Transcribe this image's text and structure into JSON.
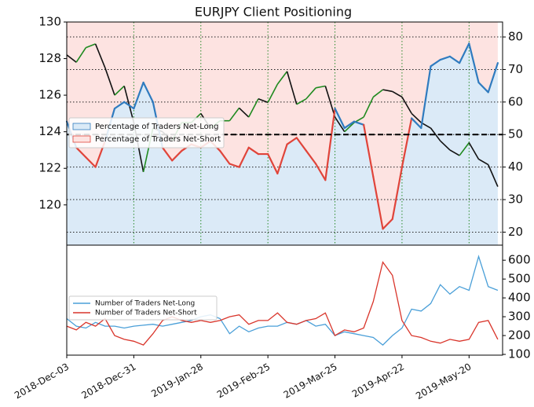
{
  "chart_data": [
    {
      "type": "line",
      "title": "EURJPY Client Positioning",
      "x": [
        "2018-12-03",
        "2018-12-07",
        "2018-12-11",
        "2018-12-15",
        "2018-12-19",
        "2018-12-23",
        "2018-12-27",
        "2018-12-31",
        "2019-01-04",
        "2019-01-08",
        "2019-01-12",
        "2019-01-16",
        "2019-01-20",
        "2019-01-24",
        "2019-01-28",
        "2019-02-01",
        "2019-02-05",
        "2019-02-09",
        "2019-02-13",
        "2019-02-17",
        "2019-02-21",
        "2019-02-25",
        "2019-03-01",
        "2019-03-05",
        "2019-03-09",
        "2019-03-13",
        "2019-03-17",
        "2019-03-21",
        "2019-03-25",
        "2019-03-29",
        "2019-04-02",
        "2019-04-06",
        "2019-04-10",
        "2019-04-14",
        "2019-04-18",
        "2019-04-22",
        "2019-04-26",
        "2019-04-30",
        "2019-05-04",
        "2019-05-08",
        "2019-05-12",
        "2019-05-16",
        "2019-05-20",
        "2019-05-24",
        "2019-05-28",
        "2019-06-01"
      ],
      "xlim": [
        "2018-12-03",
        "2019-06-03"
      ],
      "xticks": [
        "2018-12-03",
        "2018-12-31",
        "2019-01-28",
        "2019-02-25",
        "2019-03-25",
        "2019-04-22",
        "2019-05-20"
      ],
      "ylim": [
        117.8,
        130
      ],
      "yticks": [
        120,
        122,
        124,
        126,
        128,
        130
      ],
      "ytick_color": "#1f7a1f",
      "y2lim": [
        16,
        84.6
      ],
      "y2ticks": [
        20,
        30,
        40,
        50,
        60,
        70,
        80
      ],
      "grid": true,
      "reference": {
        "value": 50,
        "axis": "y2"
      },
      "legend_position": "center left",
      "legend": [
        {
          "label": "Percentage of Traders Net-Long",
          "color": "#2f7bbf",
          "fill": "#dbeaf7"
        },
        {
          "label": "Percentage of Traders Net-Short",
          "color": "#e0443a",
          "fill": "#fde3e1"
        }
      ],
      "series": [
        {
          "color": "#111111",
          "up_color": "#1f8a1f",
          "values": [
            128.2,
            127.8,
            128.6,
            128.8,
            127.5,
            126.0,
            126.5,
            124.5,
            121.8,
            124.2,
            124.0,
            123.5,
            124.5,
            124.5,
            125.0,
            124.2,
            124.6,
            124.6,
            125.3,
            124.8,
            125.8,
            125.6,
            126.6,
            127.3,
            125.5,
            125.8,
            126.4,
            126.5,
            124.8,
            124.0,
            124.5,
            124.8,
            125.9,
            126.3,
            126.2,
            125.9,
            125.0,
            124.5,
            124.2,
            123.5,
            123.0,
            122.7,
            123.4,
            122.5,
            122.2,
            121.0
          ]
        },
        {
          "axis": "y2",
          "color": "#2f7bbf",
          "color_below": "#e0443a",
          "values": [
            54,
            46,
            43,
            40,
            48,
            58,
            60,
            58,
            66,
            60,
            46,
            42,
            45,
            47,
            46,
            48,
            45,
            41,
            40,
            46,
            44,
            44,
            38,
            47,
            49,
            45,
            41,
            36,
            58,
            52,
            54,
            53,
            37,
            21,
            24,
            40,
            55,
            52,
            71,
            73,
            74,
            72,
            78,
            66,
            63,
            72
          ]
        }
      ]
    },
    {
      "type": "line",
      "x": [
        "2018-12-03",
        "2018-12-07",
        "2018-12-11",
        "2018-12-15",
        "2018-12-19",
        "2018-12-23",
        "2018-12-27",
        "2018-12-31",
        "2019-01-04",
        "2019-01-08",
        "2019-01-12",
        "2019-01-16",
        "2019-01-20",
        "2019-01-24",
        "2019-01-28",
        "2019-02-01",
        "2019-02-05",
        "2019-02-09",
        "2019-02-13",
        "2019-02-17",
        "2019-02-21",
        "2019-02-25",
        "2019-03-01",
        "2019-03-05",
        "2019-03-09",
        "2019-03-13",
        "2019-03-17",
        "2019-03-21",
        "2019-03-25",
        "2019-03-29",
        "2019-04-02",
        "2019-04-06",
        "2019-04-10",
        "2019-04-14",
        "2019-04-18",
        "2019-04-22",
        "2019-04-26",
        "2019-04-30",
        "2019-05-04",
        "2019-05-08",
        "2019-05-12",
        "2019-05-16",
        "2019-05-20",
        "2019-05-24",
        "2019-05-28",
        "2019-06-01"
      ],
      "xlim": [
        "2018-12-03",
        "2019-06-03"
      ],
      "xticks": [
        {
          "value": "2018-12-03",
          "label": "2018-Dec-03"
        },
        {
          "value": "2018-12-31",
          "label": "2018-Dec-31"
        },
        {
          "value": "2019-01-28",
          "label": "2019-Jan-28"
        },
        {
          "value": "2019-02-25",
          "label": "2019-Feb-25"
        },
        {
          "value": "2019-03-25",
          "label": "2019-Mar-25"
        },
        {
          "value": "2019-04-22",
          "label": "2019-Apr-22"
        },
        {
          "value": "2019-05-20",
          "label": "2019-May-20"
        }
      ],
      "ylim": [
        96,
        680
      ],
      "yticks": [
        100,
        200,
        300,
        400,
        500,
        600
      ],
      "yaxis_side": "right",
      "legend_position": "center left",
      "series": [
        {
          "name": "Number of Traders Net-Long",
          "color": "#4a9fd8",
          "values": [
            290,
            250,
            240,
            270,
            250,
            250,
            240,
            250,
            255,
            260,
            250,
            260,
            270,
            280,
            300,
            310,
            290,
            210,
            250,
            220,
            240,
            250,
            250,
            270,
            260,
            280,
            250,
            260,
            200,
            220,
            210,
            200,
            190,
            150,
            200,
            240,
            340,
            330,
            370,
            470,
            420,
            460,
            440,
            620,
            460,
            440
          ]
        },
        {
          "name": "Number of Traders Net-Short",
          "color": "#d9352b",
          "values": [
            250,
            230,
            270,
            250,
            290,
            200,
            180,
            170,
            150,
            210,
            280,
            300,
            280,
            270,
            280,
            270,
            280,
            300,
            310,
            260,
            280,
            280,
            320,
            270,
            260,
            280,
            290,
            320,
            200,
            230,
            220,
            240,
            380,
            590,
            520,
            280,
            200,
            190,
            170,
            160,
            180,
            170,
            180,
            270,
            280,
            180
          ]
        }
      ]
    }
  ]
}
